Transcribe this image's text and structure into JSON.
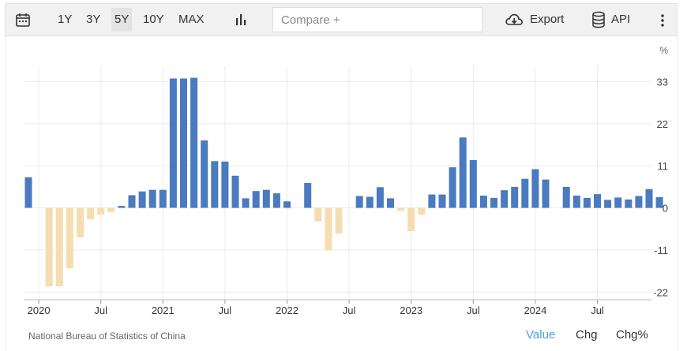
{
  "toolbar": {
    "ranges": [
      "1Y",
      "3Y",
      "5Y",
      "10Y",
      "MAX"
    ],
    "active_range": "5Y",
    "compare_placeholder": "Compare +",
    "export_label": "Export",
    "api_label": "API"
  },
  "chart_data": {
    "type": "bar",
    "unit": "%",
    "ylim": [
      -24,
      37
    ],
    "y_ticks": [
      33,
      22,
      11,
      0,
      -11,
      -22
    ],
    "x_tick_labels": [
      "2020",
      "Jul",
      "2021",
      "Jul",
      "2022",
      "Jul",
      "2023",
      "Jul",
      "2024",
      "Jul"
    ],
    "x_tick_months": [
      "2020-01",
      "2020-07",
      "2021-01",
      "2021-07",
      "2022-01",
      "2022-07",
      "2023-01",
      "2023-07",
      "2024-01",
      "2024-07"
    ],
    "positive_color": "#4a7abf",
    "negative_color": "#f5ddb0",
    "grid": true,
    "values": [
      {
        "month": "2019-12",
        "value": 8.0
      },
      {
        "month": "2020-01",
        "value": null
      },
      {
        "month": "2020-02",
        "value": -20.5
      },
      {
        "month": "2020-03",
        "value": -20.5
      },
      {
        "month": "2020-04",
        "value": -15.8
      },
      {
        "month": "2020-05",
        "value": -7.7
      },
      {
        "month": "2020-06",
        "value": -3.0
      },
      {
        "month": "2020-07",
        "value": -1.8
      },
      {
        "month": "2020-08",
        "value": -1.1
      },
      {
        "month": "2020-09",
        "value": 0.5
      },
      {
        "month": "2020-10",
        "value": 3.3
      },
      {
        "month": "2020-11",
        "value": 4.3
      },
      {
        "month": "2020-12",
        "value": 4.7
      },
      {
        "month": "2021-01",
        "value": 4.7
      },
      {
        "month": "2021-02",
        "value": 33.8
      },
      {
        "month": "2021-03",
        "value": 33.8
      },
      {
        "month": "2021-04",
        "value": 34.0
      },
      {
        "month": "2021-05",
        "value": 17.6
      },
      {
        "month": "2021-06",
        "value": 12.2
      },
      {
        "month": "2021-07",
        "value": 12.1
      },
      {
        "month": "2021-08",
        "value": 8.4
      },
      {
        "month": "2021-09",
        "value": 2.5
      },
      {
        "month": "2021-10",
        "value": 4.4
      },
      {
        "month": "2021-11",
        "value": 4.7
      },
      {
        "month": "2021-12",
        "value": 3.8
      },
      {
        "month": "2022-01",
        "value": 1.7
      },
      {
        "month": "2022-02",
        "value": null
      },
      {
        "month": "2022-03",
        "value": 6.5
      },
      {
        "month": "2022-04",
        "value": -3.5
      },
      {
        "month": "2022-05",
        "value": -11.1
      },
      {
        "month": "2022-06",
        "value": -6.7
      },
      {
        "month": "2022-07",
        "value": null
      },
      {
        "month": "2022-08",
        "value": 3.1
      },
      {
        "month": "2022-09",
        "value": 2.9
      },
      {
        "month": "2022-10",
        "value": 5.4
      },
      {
        "month": "2022-11",
        "value": 2.5
      },
      {
        "month": "2022-12",
        "value": -0.8
      },
      {
        "month": "2023-01",
        "value": -6.1
      },
      {
        "month": "2023-02",
        "value": -1.8
      },
      {
        "month": "2023-03",
        "value": 3.5
      },
      {
        "month": "2023-04",
        "value": 3.5
      },
      {
        "month": "2023-05",
        "value": 10.6
      },
      {
        "month": "2023-06",
        "value": 18.4
      },
      {
        "month": "2023-07",
        "value": 12.5
      },
      {
        "month": "2023-08",
        "value": 3.2
      },
      {
        "month": "2023-09",
        "value": 2.6
      },
      {
        "month": "2023-10",
        "value": 4.6
      },
      {
        "month": "2023-11",
        "value": 5.5
      },
      {
        "month": "2023-12",
        "value": 7.6
      },
      {
        "month": "2024-01",
        "value": 10.1
      },
      {
        "month": "2024-02",
        "value": 7.4
      },
      {
        "month": "2024-03",
        "value": null
      },
      {
        "month": "2024-04",
        "value": 5.5
      },
      {
        "month": "2024-05",
        "value": 3.2
      },
      {
        "month": "2024-06",
        "value": 2.6
      },
      {
        "month": "2024-07",
        "value": 3.6
      },
      {
        "month": "2024-08",
        "value": 2.1
      },
      {
        "month": "2024-09",
        "value": 2.7
      },
      {
        "month": "2024-10",
        "value": 2.2
      },
      {
        "month": "2024-11",
        "value": 3.1
      },
      {
        "month": "2024-12",
        "value": 4.9
      },
      {
        "month": "2025-01",
        "value": 2.8
      }
    ]
  },
  "footer": {
    "source": "National Bureau of Statistics of China",
    "view_tabs": [
      "Value",
      "Chg",
      "Chg%"
    ],
    "active_tab": "Value"
  }
}
